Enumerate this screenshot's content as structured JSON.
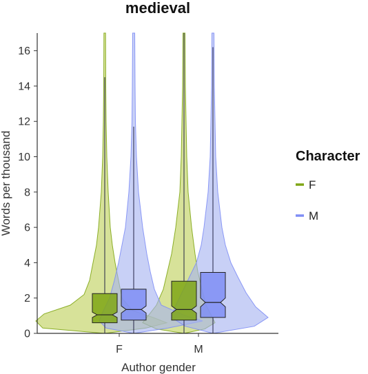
{
  "chart_data": {
    "type": "violin",
    "title": "medieval",
    "xlabel": "Author gender",
    "ylabel": "Words per thousand",
    "categories": [
      "F",
      "M"
    ],
    "ylim": [
      0,
      17
    ],
    "yticks": [
      0,
      2,
      4,
      6,
      8,
      10,
      12,
      14,
      16
    ],
    "grid": false,
    "legend": {
      "title": "Character",
      "placement": "right",
      "entries": [
        {
          "label": "F",
          "color": "#7fa615"
        },
        {
          "label": "M",
          "color": "#7f8ef5"
        }
      ]
    },
    "series": [
      {
        "name": "F",
        "color": "#7fa615",
        "fill": "#bfd05a",
        "groups": [
          {
            "category": "F",
            "q1": 0.6,
            "median": 1.05,
            "q3": 2.25,
            "notch_low": 0.9,
            "notch_high": 1.2,
            "whisker_low": 0,
            "whisker_high": 14.5,
            "max": 17
          },
          {
            "category": "M",
            "q1": 0.75,
            "median": 1.35,
            "q3": 2.95,
            "notch_low": 1.15,
            "notch_high": 1.55,
            "whisker_low": 0,
            "whisker_high": 17,
            "max": 17
          }
        ]
      },
      {
        "name": "M",
        "color": "#7f8ef5",
        "fill": "#a7b3f0",
        "groups": [
          {
            "category": "F",
            "q1": 0.75,
            "median": 1.35,
            "q3": 2.5,
            "notch_low": 1.15,
            "notch_high": 1.55,
            "whisker_low": 0,
            "whisker_high": 11.7,
            "max": 17
          },
          {
            "category": "M",
            "q1": 0.9,
            "median": 1.75,
            "q3": 3.45,
            "notch_low": 1.5,
            "notch_high": 2.0,
            "whisker_low": 0,
            "whisker_high": 16.2,
            "max": 17
          }
        ]
      }
    ]
  }
}
